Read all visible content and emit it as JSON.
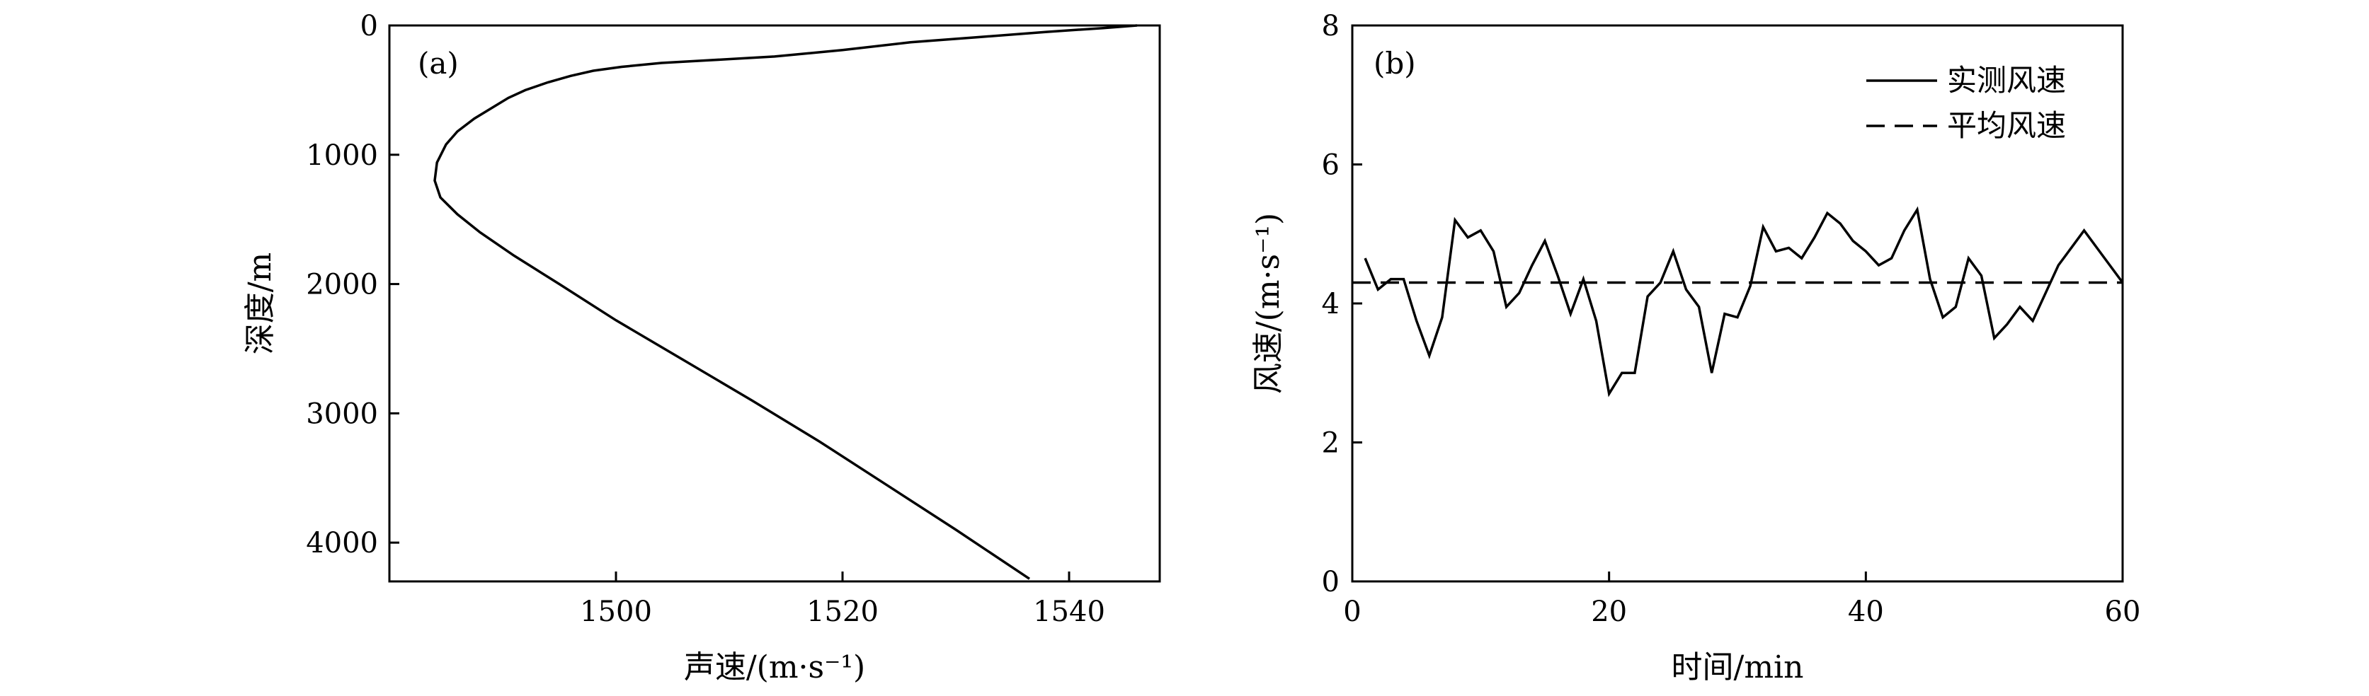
{
  "chart_data": [
    {
      "type": "line",
      "panel_label": "(a)",
      "xlabel": "声速/(m·s⁻¹)",
      "ylabel": "深度/m",
      "xlim": [
        1480,
        1548
      ],
      "ylim": [
        0,
        4300
      ],
      "y_inverted": true,
      "x_ticks": [
        1500,
        1520,
        1540
      ],
      "y_ticks": [
        0,
        1000,
        2000,
        3000,
        4000
      ],
      "series": [
        {
          "style": "solid",
          "x": [
            1546,
            1543,
            1538,
            1532,
            1526,
            1520,
            1514,
            1508,
            1504,
            1500.5,
            1498,
            1496,
            1494,
            1492,
            1490.5,
            1489,
            1487.5,
            1486,
            1485,
            1484.2,
            1484,
            1484.5,
            1486,
            1488,
            1491,
            1495,
            1500,
            1506,
            1512,
            1518,
            1524,
            1530,
            1536.5
          ],
          "y": [
            0,
            20,
            50,
            90,
            130,
            190,
            240,
            270,
            290,
            320,
            350,
            390,
            440,
            500,
            560,
            640,
            720,
            820,
            920,
            1060,
            1200,
            1330,
            1460,
            1600,
            1780,
            2000,
            2280,
            2590,
            2900,
            3220,
            3560,
            3900,
            4280
          ]
        }
      ]
    },
    {
      "type": "line",
      "panel_label": "(b)",
      "xlabel": "时间/min",
      "ylabel": "风速/(m·s⁻¹)",
      "xlim": [
        0,
        60
      ],
      "ylim": [
        0,
        8
      ],
      "x_ticks": [
        0,
        20,
        40,
        60
      ],
      "y_ticks": [
        0,
        2,
        4,
        6,
        8
      ],
      "legend_position": "top-right",
      "series": [
        {
          "name": "实测风速",
          "style": "solid",
          "x": [
            1,
            2,
            3,
            4,
            5,
            6,
            7,
            8,
            9,
            10,
            11,
            12,
            13,
            14,
            15,
            16,
            17,
            18,
            19,
            20,
            21,
            22,
            23,
            24,
            25,
            26,
            27,
            28,
            29,
            30,
            31,
            32,
            33,
            34,
            35,
            36,
            37,
            38,
            39,
            40,
            41,
            42,
            43,
            44,
            45,
            46,
            47,
            48,
            49,
            50,
            51,
            52,
            53,
            54,
            55,
            56,
            57,
            58,
            59,
            60
          ],
          "values": [
            4.65,
            4.2,
            4.35,
            4.35,
            3.75,
            3.25,
            3.8,
            5.2,
            4.95,
            5.05,
            4.75,
            3.95,
            4.15,
            4.55,
            4.9,
            4.4,
            3.85,
            4.35,
            3.75,
            2.7,
            3.0,
            3.0,
            4.1,
            4.3,
            4.75,
            4.2,
            3.95,
            3.0,
            3.85,
            3.8,
            4.25,
            5.1,
            4.75,
            4.8,
            4.65,
            4.95,
            5.3,
            5.15,
            4.9,
            4.75,
            4.55,
            4.65,
            5.05,
            5.35,
            4.35,
            3.8,
            3.95,
            4.65,
            4.4,
            3.5,
            3.7,
            3.95,
            3.75,
            4.15,
            4.55,
            4.8,
            5.05,
            4.8,
            4.55,
            4.3
          ]
        },
        {
          "name": "平均风速",
          "style": "dashed",
          "x": [
            0,
            60
          ],
          "values": [
            4.3,
            4.3
          ]
        }
      ]
    }
  ]
}
